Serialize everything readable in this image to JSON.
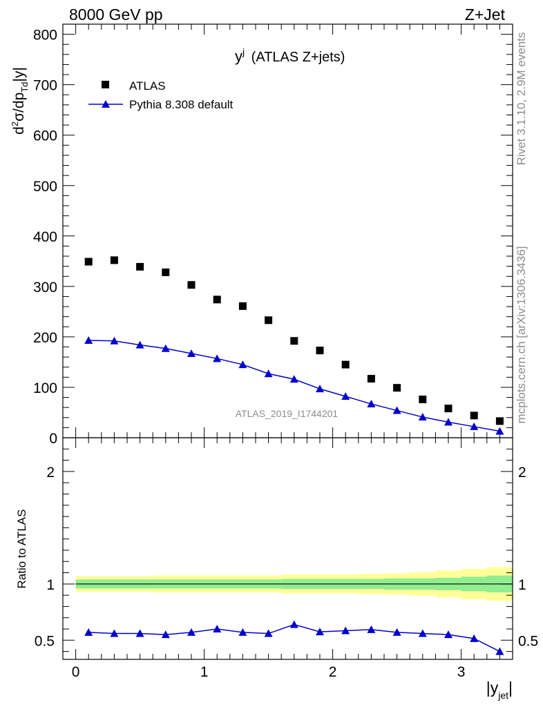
{
  "header": {
    "left": "8000 GeV pp",
    "right": "Z+Jet"
  },
  "side_labels": {
    "rivet": "Rivet 3.1.10,  2.9M events",
    "mcplots": "mcplots.cern.ch [arXiv:1306.3436]"
  },
  "colors": {
    "data": "#000000",
    "mc": "#0000cc",
    "band_inner": "#90ee90",
    "band_outer": "#ffff99"
  },
  "chart_data": [
    {
      "type": "scatter",
      "title": "y",
      "title_sup": "j",
      "title_rest": " (ATLAS Z+jets)",
      "ylabel": "d²σ/dp_Td|y|",
      "xlabel": "|y_jet|",
      "watermark": "ATLAS_2019_I1744201",
      "xlim": [
        -0.1,
        3.4
      ],
      "ylim": [
        0,
        820
      ],
      "yticks": [
        0,
        100,
        200,
        300,
        400,
        500,
        600,
        700,
        800
      ],
      "legend_position": "top-left",
      "x": [
        0.1,
        0.3,
        0.5,
        0.7,
        0.9,
        1.1,
        1.3,
        1.5,
        1.7,
        1.9,
        2.1,
        2.3,
        2.5,
        2.7,
        2.9,
        3.1,
        3.3
      ],
      "series": [
        {
          "name": "ATLAS",
          "marker": "square",
          "values": [
            349,
            352,
            339,
            328,
            303,
            274,
            261,
            233,
            192,
            173,
            145,
            117,
            99,
            76,
            58,
            44,
            33
          ]
        },
        {
          "name": "Pythia 8.308 default",
          "marker": "triangle",
          "values": [
            193,
            192,
            184,
            177,
            167,
            157,
            145,
            127,
            116,
            97,
            82,
            67,
            54,
            41,
            31,
            22,
            13
          ]
        }
      ]
    },
    {
      "type": "line",
      "ylabel": "Ratio to ATLAS",
      "xlim": [
        -0.1,
        3.4
      ],
      "ylim": [
        0.33,
        2.3
      ],
      "yticks": [
        0.5,
        1,
        2
      ],
      "xticks": [
        0,
        1,
        2,
        3
      ],
      "x": [
        0.1,
        0.3,
        0.5,
        0.7,
        0.9,
        1.1,
        1.3,
        1.5,
        1.7,
        1.9,
        2.1,
        2.3,
        2.5,
        2.7,
        2.9,
        3.1,
        3.3
      ],
      "x_edges": [
        0.0,
        0.2,
        0.4,
        0.6,
        0.8,
        1.0,
        1.2,
        1.4,
        1.6,
        1.8,
        2.0,
        2.2,
        2.4,
        2.6,
        2.8,
        3.0,
        3.2,
        3.4
      ],
      "series": [
        {
          "name": "Pythia 8.308 default",
          "values": [
            0.57,
            0.56,
            0.56,
            0.55,
            0.57,
            0.6,
            0.57,
            0.56,
            0.64,
            0.575,
            0.585,
            0.595,
            0.57,
            0.56,
            0.55,
            0.515,
            0.4
          ]
        }
      ],
      "band_inner": {
        "lo": [
          0.96,
          0.96,
          0.96,
          0.96,
          0.96,
          0.96,
          0.96,
          0.96,
          0.955,
          0.955,
          0.955,
          0.955,
          0.95,
          0.95,
          0.945,
          0.935,
          0.925
        ],
        "hi": [
          1.04,
          1.04,
          1.04,
          1.04,
          1.04,
          1.04,
          1.04,
          1.04,
          1.045,
          1.045,
          1.045,
          1.045,
          1.05,
          1.05,
          1.055,
          1.065,
          1.075
        ]
      },
      "band_outer": {
        "lo": [
          0.93,
          0.93,
          0.93,
          0.925,
          0.925,
          0.925,
          0.925,
          0.925,
          0.915,
          0.915,
          0.915,
          0.91,
          0.905,
          0.895,
          0.88,
          0.865,
          0.85
        ],
        "hi": [
          1.07,
          1.07,
          1.07,
          1.075,
          1.075,
          1.075,
          1.075,
          1.075,
          1.085,
          1.085,
          1.085,
          1.09,
          1.095,
          1.105,
          1.12,
          1.135,
          1.15
        ]
      }
    }
  ]
}
